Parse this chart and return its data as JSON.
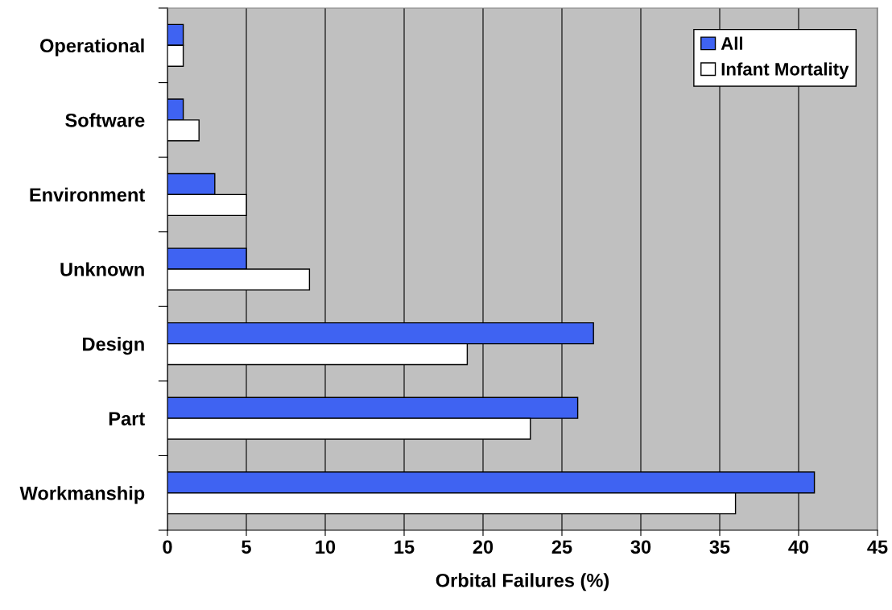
{
  "chart_data": {
    "type": "bar",
    "orientation": "horizontal",
    "xlabel": "Orbital Failures (%)",
    "categories": [
      "Operational",
      "Software",
      "Environment",
      "Unknown",
      "Design",
      "Part",
      "Workmanship"
    ],
    "series": [
      {
        "name": "All",
        "color": "#3f63f2",
        "values": [
          1,
          1,
          3,
          5,
          27,
          26,
          41
        ]
      },
      {
        "name": "Infant Mortality",
        "color": "#ffffff",
        "values": [
          1,
          2,
          5,
          9,
          19,
          23,
          36
        ]
      }
    ],
    "xlim": [
      0,
      45
    ],
    "xticks": [
      0,
      5,
      10,
      15,
      20,
      25,
      30,
      35,
      40,
      45
    ],
    "grid": "x",
    "legend": "top right"
  }
}
